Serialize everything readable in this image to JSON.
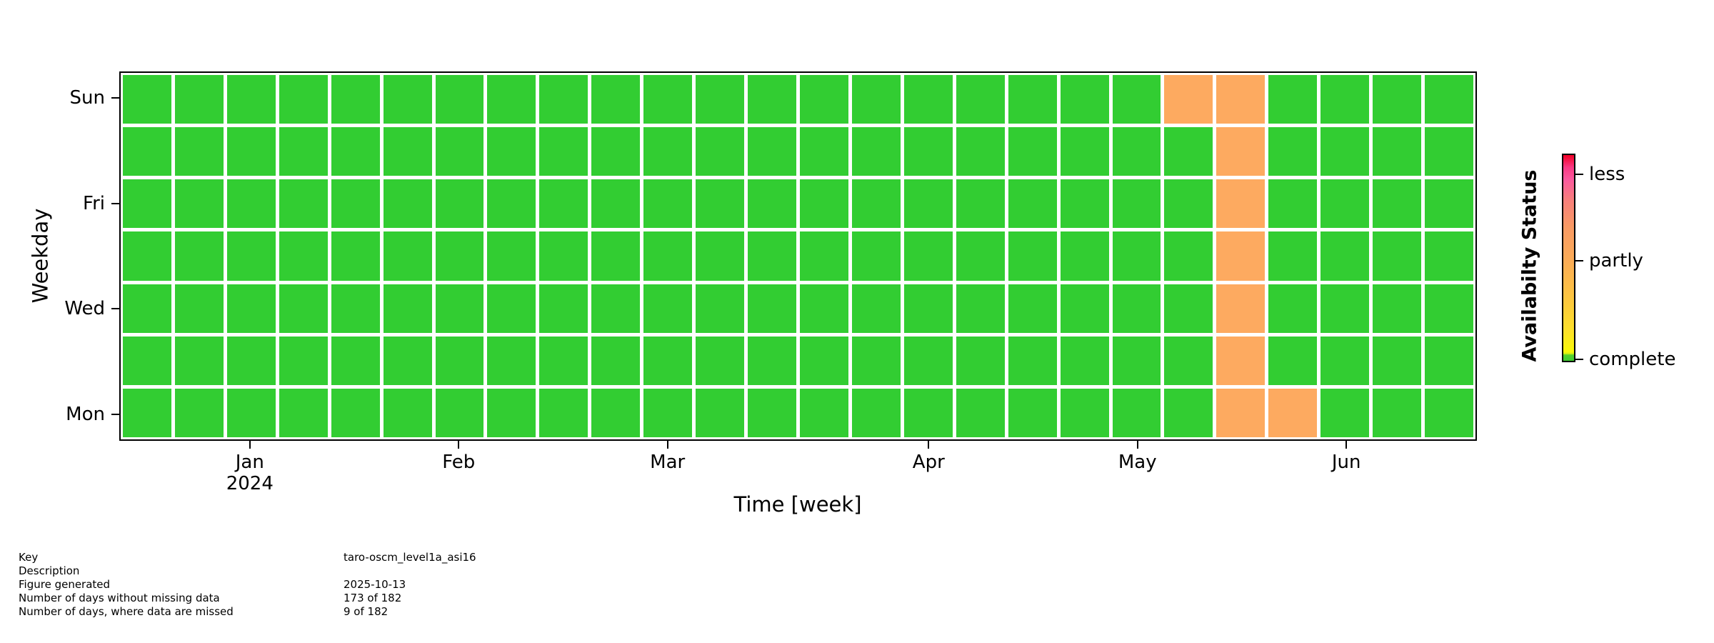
{
  "chart_data": {
    "type": "heatmap",
    "title": "",
    "xlabel": "Time [week]",
    "ylabel": "Weekday",
    "n_weeks": 26,
    "weekday_rows_top_to_bottom": [
      "Sun",
      "Sat",
      "Fri",
      "Thu",
      "Wed",
      "Tue",
      "Mon"
    ],
    "y_ticks": [
      {
        "label": "Sun",
        "row_index": 0
      },
      {
        "label": "Fri",
        "row_index": 2
      },
      {
        "label": "Wed",
        "row_index": 4
      },
      {
        "label": "Mon",
        "row_index": 6
      }
    ],
    "x_ticks": [
      {
        "label": "Jan",
        "week_index": 2,
        "sublabel": "2024"
      },
      {
        "label": "Feb",
        "week_index": 6,
        "sublabel": ""
      },
      {
        "label": "Mar",
        "week_index": 10,
        "sublabel": ""
      },
      {
        "label": "Apr",
        "week_index": 15,
        "sublabel": ""
      },
      {
        "label": "May",
        "week_index": 19,
        "sublabel": ""
      },
      {
        "label": "Jun",
        "week_index": 23,
        "sublabel": ""
      }
    ],
    "statuses": {
      "complete_color": "#32cd32",
      "partly_color": "#fdaa60"
    },
    "default_status": "complete",
    "partly_cells": [
      {
        "row": 0,
        "col": 20
      },
      {
        "row": 0,
        "col": 21
      },
      {
        "row": 1,
        "col": 21
      },
      {
        "row": 2,
        "col": 21
      },
      {
        "row": 3,
        "col": 21
      },
      {
        "row": 4,
        "col": 21
      },
      {
        "row": 5,
        "col": 21
      },
      {
        "row": 6,
        "col": 21
      },
      {
        "row": 6,
        "col": 22
      }
    ],
    "colorbar": {
      "title": "Availabilty Status",
      "ticks": [
        {
          "label": "less",
          "pos": 0.1
        },
        {
          "label": "partly",
          "pos": 0.52
        },
        {
          "label": "complete",
          "pos": 1.0
        }
      ],
      "gradient_stops": [
        {
          "pos": 0.0,
          "color": "#f10025"
        },
        {
          "pos": 0.06,
          "color": "#f93a85"
        },
        {
          "pos": 0.12,
          "color": "#fa5a9e"
        },
        {
          "pos": 0.22,
          "color": "#f87f7b"
        },
        {
          "pos": 0.35,
          "color": "#f99a64"
        },
        {
          "pos": 0.5,
          "color": "#fbaa58"
        },
        {
          "pos": 0.68,
          "color": "#fcc342"
        },
        {
          "pos": 0.85,
          "color": "#fde02a"
        },
        {
          "pos": 0.955,
          "color": "#f8f808"
        },
        {
          "pos": 0.965,
          "color": "#d8f011"
        },
        {
          "pos": 0.972,
          "color": "#55d22c"
        },
        {
          "pos": 1.0,
          "color": "#3fcd2f"
        }
      ]
    }
  },
  "info_table": {
    "rows": [
      {
        "label": "Key",
        "value": "taro-oscm_level1a_asi16"
      },
      {
        "label": "Description",
        "value": ""
      },
      {
        "label": "Figure generated",
        "value": "2025-10-13"
      },
      {
        "label": "Number of days without missing data",
        "value": "173 of 182"
      },
      {
        "label": "Number of days, where data are missed",
        "value": "9 of 182"
      }
    ]
  }
}
